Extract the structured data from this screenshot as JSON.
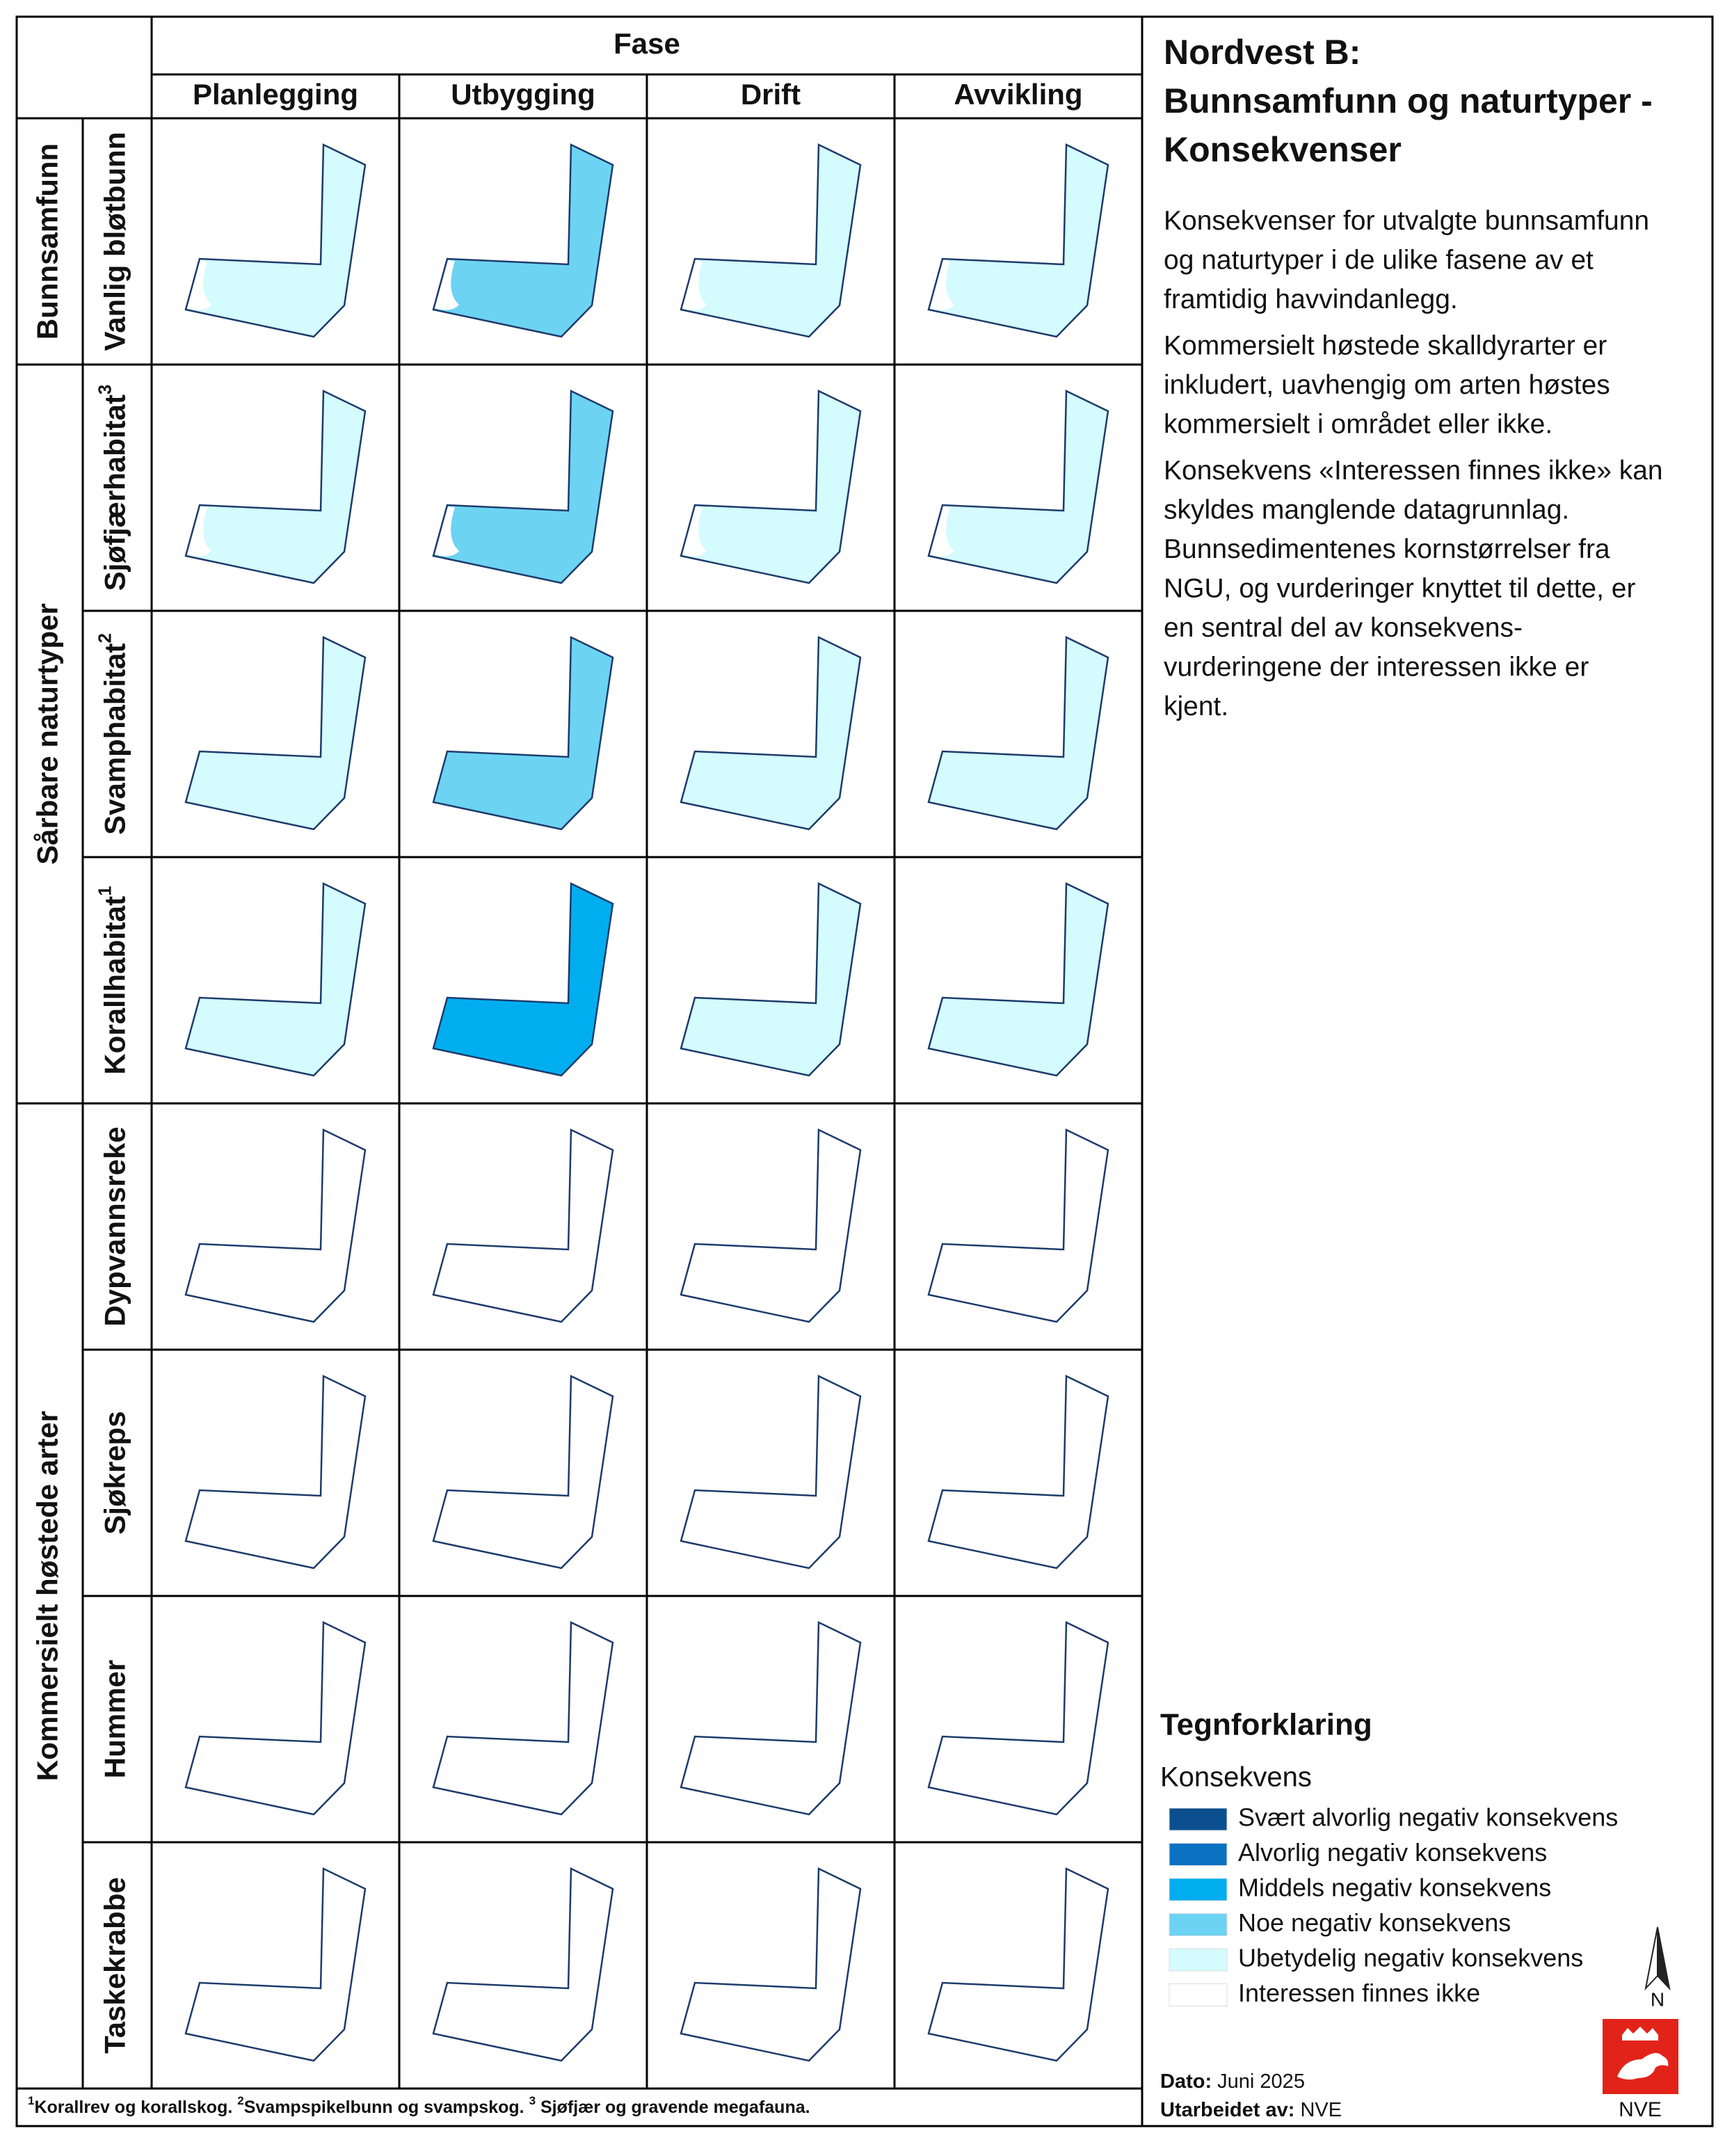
{
  "title": [
    "Nordvest B:",
    "Bunnsamfunn og naturtyper -",
    "Konsekvenser"
  ],
  "description": [
    [
      "Konsekvenser for utvalgte bunnsamfunn",
      "og naturtyper i de ulike fasene av et",
      "framtidig havvindanlegg."
    ],
    [
      "Kommersielt høstede skalldyrarter er",
      "inkludert, uavhengig om arten høstes",
      "kommersielt i området eller ikke."
    ],
    [
      "Konsekvens «Interessen finnes ikke» kan",
      "skyldes manglende datagrunnlag.",
      "Bunnsedimentenes kornstørrelser fra",
      "NGU, og vurderinger knyttet til dette, er",
      "en sentral del av konsekvens-",
      "vurderingene der interessen ikke er",
      "kjent."
    ]
  ],
  "phase_label": "Fase",
  "phases": [
    "Planlegging",
    "Utbygging",
    "Drift",
    "Avvikling"
  ],
  "groups": [
    {
      "name": "Bunnsamfunn",
      "rows": [
        {
          "label": "Vanlig bløtbunn",
          "cells": [
            "Ubetydelig negativ konsekvens",
            "Noe negativ konsekvens",
            "Ubetydelig negativ konsekvens",
            "Ubetydelig negativ konsekvens"
          ]
        }
      ]
    },
    {
      "name": "Sårbare naturtyper",
      "rows": [
        {
          "label": "Sjøfjærhabitat",
          "note": "3",
          "cells": [
            "Ubetydelig negativ konsekvens",
            "Noe negativ konsekvens",
            "Ubetydelig negativ konsekvens",
            "Ubetydelig negativ konsekvens"
          ]
        },
        {
          "label": "Svamphabitat",
          "note": "2",
          "cells": [
            "Ubetydelig negativ konsekvens",
            "Noe negativ konsekvens",
            "Ubetydelig negativ konsekvens",
            "Ubetydelig negativ konsekvens"
          ]
        },
        {
          "label": "Korallhabitat",
          "note": "1",
          "cells": [
            "Ubetydelig negativ konsekvens",
            "Middels negativ konsekvens",
            "Ubetydelig negativ konsekvens",
            "Ubetydelig negativ konsekvens"
          ]
        }
      ]
    },
    {
      "name": "Kommersielt høstede arter",
      "rows": [
        {
          "label": "Dypvannsreke",
          "cells": [
            "Interessen finnes ikke",
            "Interessen finnes ikke",
            "Interessen finnes ikke",
            "Interessen finnes ikke"
          ]
        },
        {
          "label": "Sjøkreps",
          "cells": [
            "Interessen finnes ikke",
            "Interessen finnes ikke",
            "Interessen finnes ikke",
            "Interessen finnes ikke"
          ]
        },
        {
          "label": "Hummer",
          "cells": [
            "Interessen finnes ikke",
            "Interessen finnes ikke",
            "Interessen finnes ikke",
            "Interessen finnes ikke"
          ]
        },
        {
          "label": "Taskekrabbe",
          "cells": [
            "Interessen finnes ikke",
            "Interessen finnes ikke",
            "Interessen finnes ikke",
            "Interessen finnes ikke"
          ]
        }
      ]
    }
  ],
  "legend": {
    "title": "Tegnforklaring",
    "subtitle": "Konsekvens",
    "items": [
      {
        "label": "Svært alvorlig negativ konsekvens",
        "color": "#0b4f8f"
      },
      {
        "label": "Alvorlig negativ konsekvens",
        "color": "#0b72c2"
      },
      {
        "label": "Middels negativ konsekvens",
        "color": "#00aeef"
      },
      {
        "label": "Noe negativ konsekvens",
        "color": "#6dd3f3"
      },
      {
        "label": "Ubetydelig negativ konsekvens",
        "color": "#d4fbfd"
      },
      {
        "label": "Interessen finnes ikke",
        "color": "#ffffff"
      }
    ]
  },
  "footnotes": [
    {
      "mark": "1",
      "text": "Korallrev og korallskog."
    },
    {
      "mark": "2",
      "text": "Svampspikelbunn og svampskog."
    },
    {
      "mark": "3",
      "text": " Sjøfjær og gravende megafauna."
    }
  ],
  "date": {
    "label": "Dato:",
    "value": "Juni 2025"
  },
  "author": {
    "label": "Utarbeidet av:",
    "value": "NVE"
  },
  "north": "N",
  "logo": "NVE"
}
